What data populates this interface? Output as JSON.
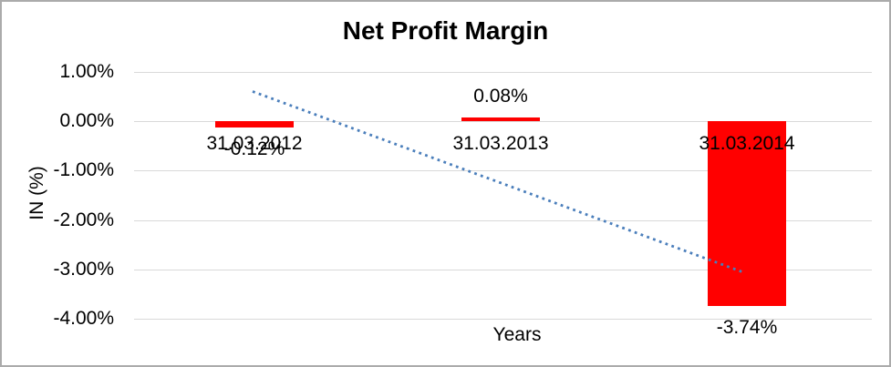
{
  "window": {
    "background": "#ffffff",
    "border_color": "#ababab"
  },
  "chart_data": {
    "type": "bar",
    "title": "Net Profit Margin",
    "xlabel": "Years",
    "ylabel": "IN (%)",
    "categories": [
      "31.03.2012",
      "31.03.2013",
      "31.03.2014"
    ],
    "values": [
      -0.12,
      0.08,
      -3.74
    ],
    "data_labels": [
      "-0.12%",
      "0.08%",
      "-3.74%"
    ],
    "series_name": "Net Profit Margin",
    "ylim": [
      -4,
      1
    ],
    "yticks": [
      {
        "value": 1,
        "label": "1.00%"
      },
      {
        "value": 0,
        "label": "0.00%"
      },
      {
        "value": -1,
        "label": "-1.00%"
      },
      {
        "value": -2,
        "label": "-2.00%"
      },
      {
        "value": -3,
        "label": "-3.00%"
      },
      {
        "value": -4,
        "label": "-4.00%"
      }
    ],
    "grid": true,
    "legend": "none",
    "colors": {
      "bar": "#ff0000",
      "trendline": "#4a7ebb",
      "gridline": "#d9d9d9",
      "text": "#000000"
    },
    "trendline": {
      "type": "linear",
      "line_style": "dotted",
      "start_value": 0.6,
      "end_value": -3.05
    }
  }
}
